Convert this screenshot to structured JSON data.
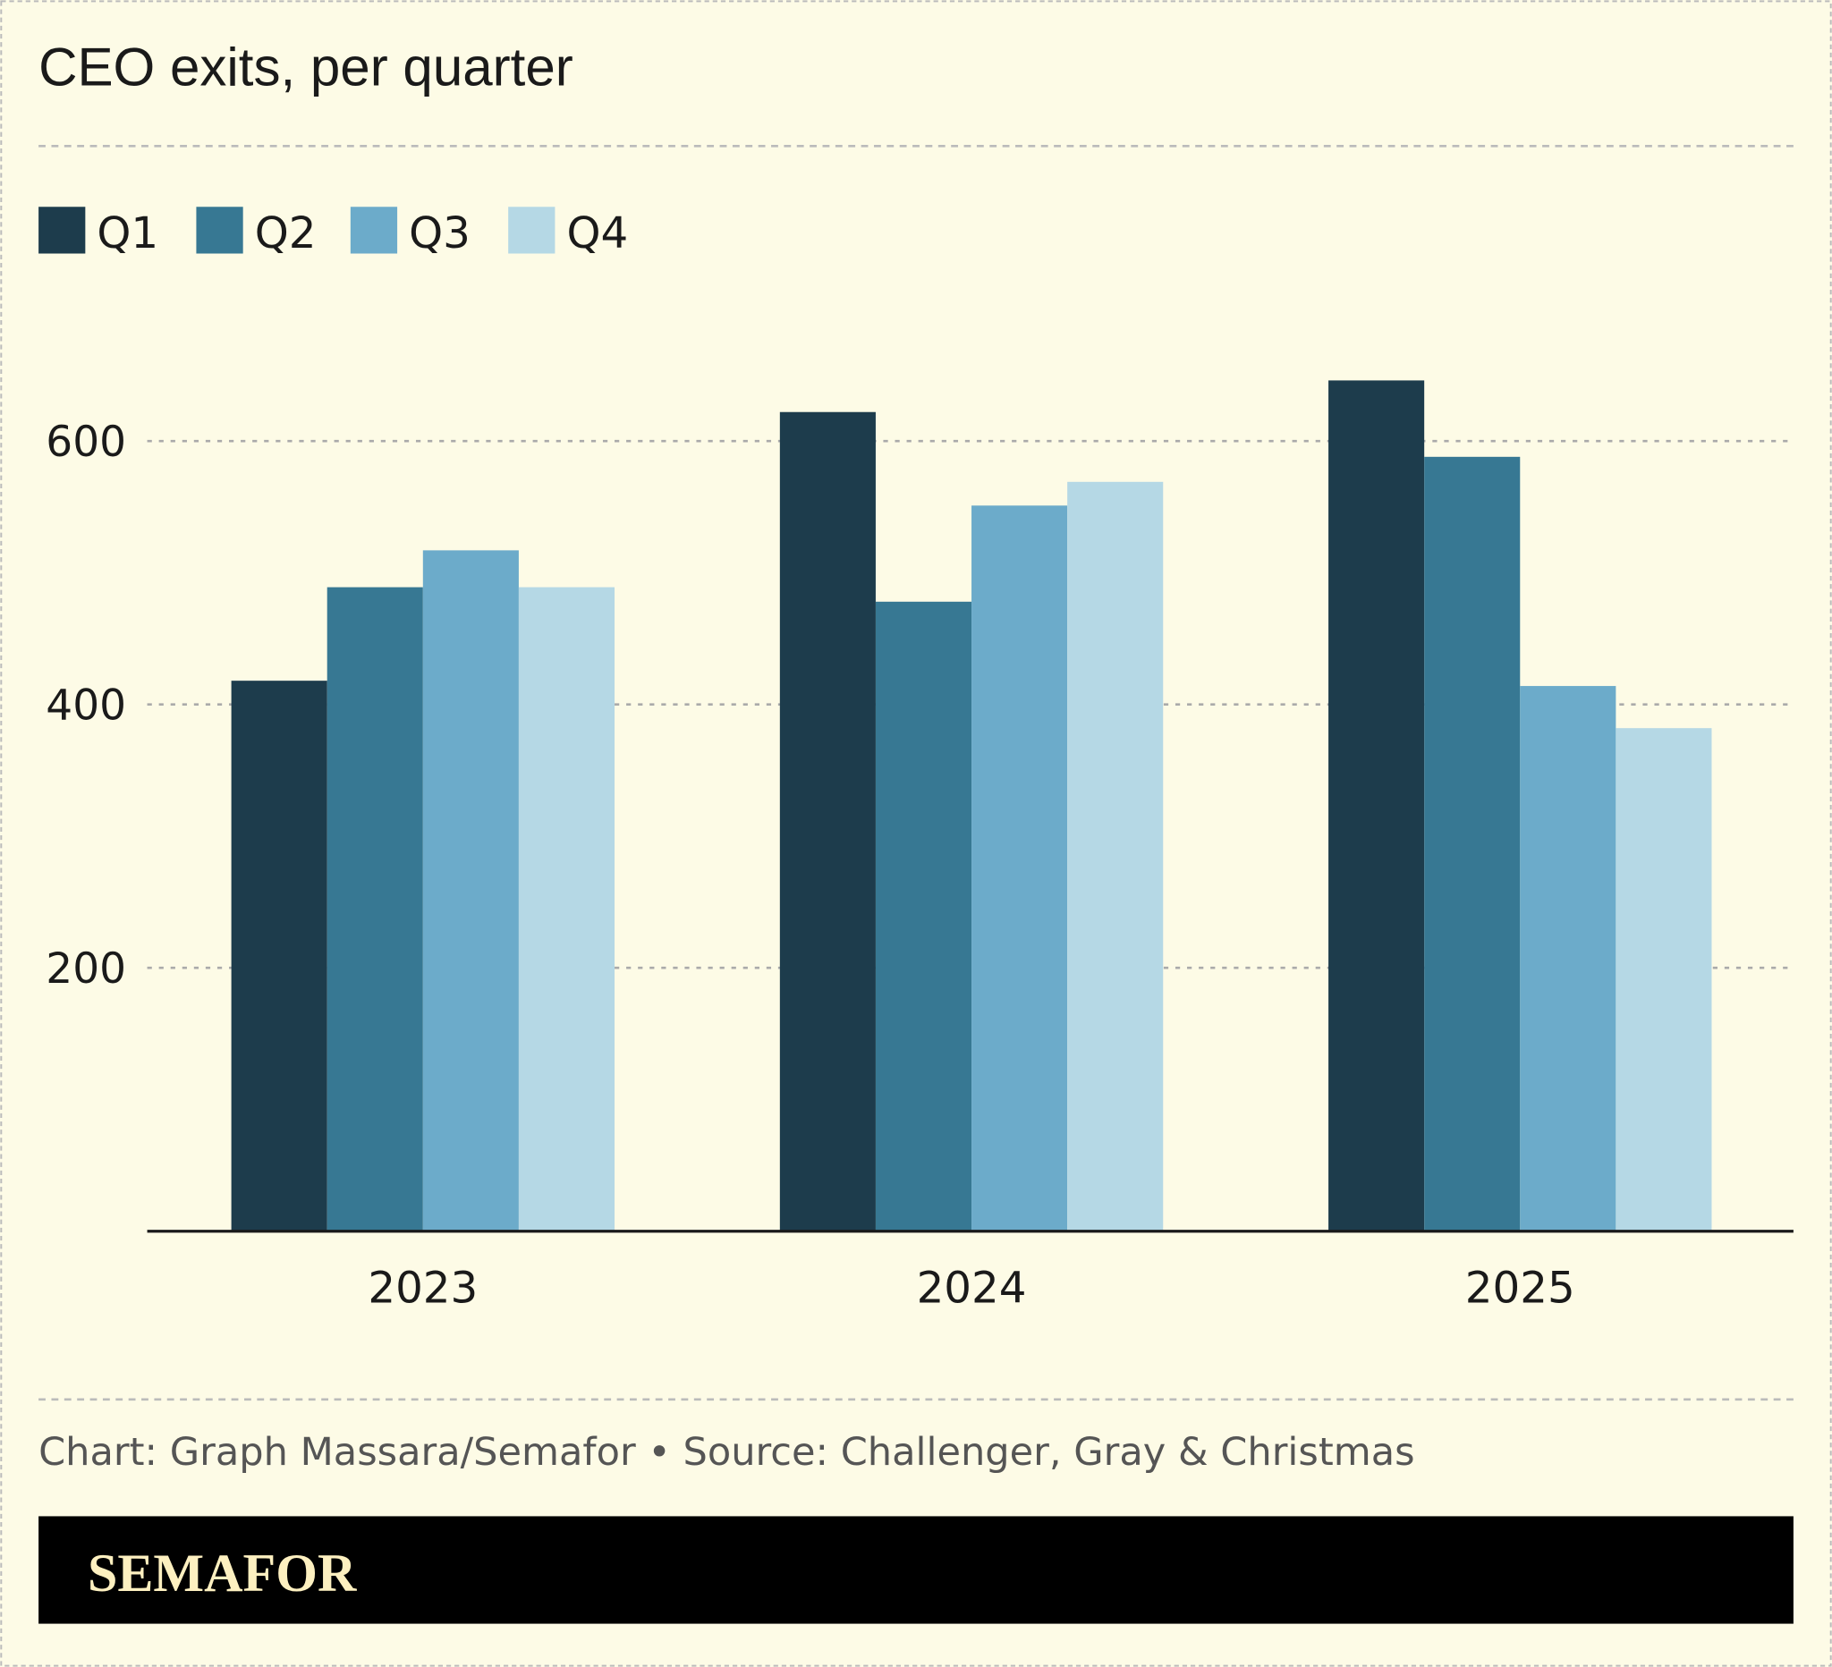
{
  "chart_data": {
    "type": "bar",
    "title": "CEO exits, per quarter",
    "categories": [
      "2023",
      "2024",
      "2025"
    ],
    "series": [
      {
        "name": "Q1",
        "color": "#1d3c4c",
        "values": [
          418,
          622,
          646
        ]
      },
      {
        "name": "Q2",
        "color": "#377893",
        "values": [
          489,
          478,
          588
        ]
      },
      {
        "name": "Q3",
        "color": "#6cabca",
        "values": [
          517,
          551,
          414
        ]
      },
      {
        "name": "Q4",
        "color": "#b5d8e5",
        "values": [
          489,
          569,
          382
        ]
      }
    ],
    "yticks": [
      "200",
      "400",
      "600"
    ],
    "ylim": [
      0,
      700
    ],
    "grid": true,
    "legend_placement": "top-left",
    "xlabel": "",
    "ylabel": ""
  },
  "footer": {
    "source": "Chart: Graph Massara/Semafor • Source: Challenger, Gray & Christmas",
    "brand": "SEMAFOR"
  },
  "colors": {
    "background": "#fdfbe6",
    "brand_bar": "#000000"
  }
}
